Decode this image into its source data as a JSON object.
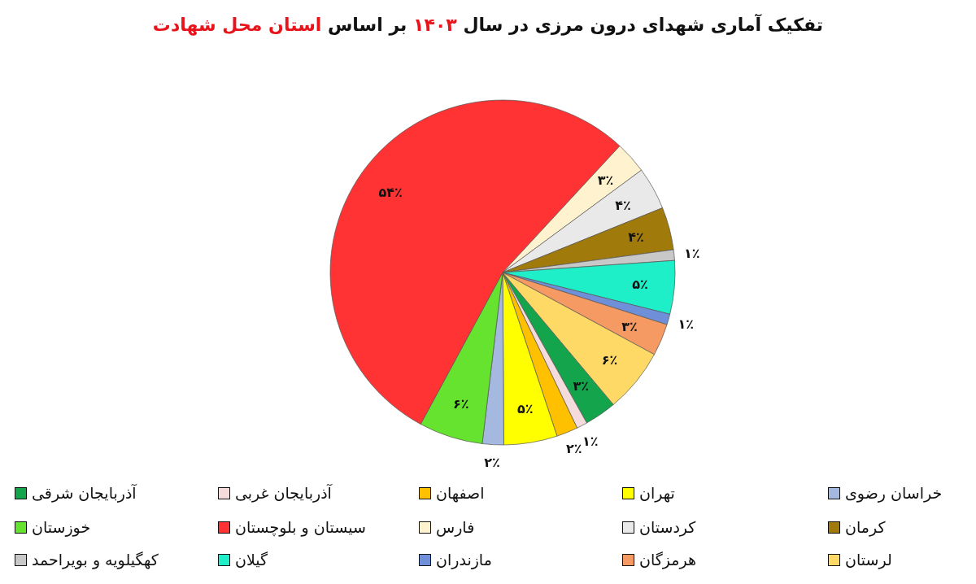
{
  "chart_data": {
    "type": "pie",
    "title": "تفکیک آماری شهدای درون مرزی در سال ۱۴۰۳ بر اساس استان محل شهادت",
    "categories": [
      "آذربایجان شرقی",
      "آذربایجان غربی",
      "اصفهان",
      "تهران",
      "خراسان رضوی",
      "خوزستان",
      "سیستان و بلوچستان",
      "فارس",
      "کردستان",
      "کرمان",
      "کهگیلویه و بویراحمد",
      "گیلان",
      "مازندران",
      "هرمزگان",
      "لرستان"
    ],
    "values": [
      3,
      1,
      2,
      5,
      2,
      6,
      54,
      3,
      4,
      4,
      1,
      5,
      1,
      3,
      6
    ],
    "colors": [
      "#14a54c",
      "#f5dcdc",
      "#ffc000",
      "#ffff00",
      "#a4b8e0",
      "#66e32e",
      "#ff3333",
      "#fff3cf",
      "#e9e9e9",
      "#a07a0a",
      "#c8c8c8",
      "#1eefc8",
      "#6f8fd8",
      "#f49a62",
      "#ffd966"
    ],
    "value_labels": [
      "۳٪",
      "۱٪",
      "۲٪",
      "۵٪",
      "۲٪",
      "۶٪",
      "۵۴٪",
      "۳٪",
      "۴٪",
      "۴٪",
      "۱٪",
      "۵٪",
      "۱٪",
      "۳٪",
      "۶٪"
    ],
    "legend": "bottom"
  }
}
